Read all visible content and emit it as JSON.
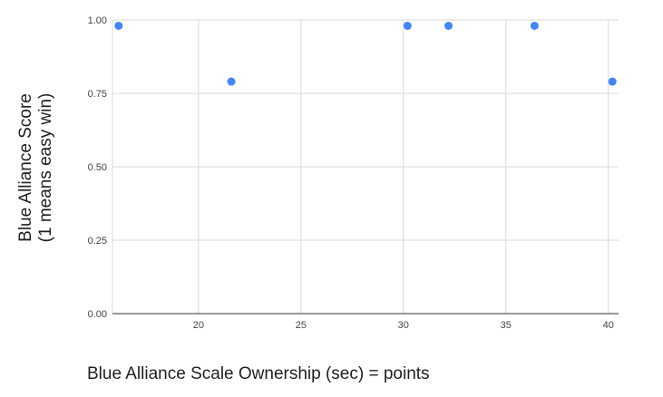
{
  "chart_data": {
    "type": "scatter",
    "title": "",
    "xlabel": "Blue Alliance Scale Ownership (sec) = points",
    "ylabel_line1": "Blue Alliance Score",
    "ylabel_line2": "(1 means easy win)",
    "xlim": [
      15.8,
      40.5
    ],
    "ylim": [
      0,
      1.0
    ],
    "x_ticks": [
      20,
      25,
      30,
      35,
      40
    ],
    "y_ticks": [
      0.0,
      0.25,
      0.5,
      0.75,
      1.0
    ],
    "x_tick_labels": [
      "20",
      "25",
      "30",
      "35",
      "40"
    ],
    "y_tick_labels": [
      "0.00",
      "0.25",
      "0.50",
      "0.75",
      "1.00"
    ],
    "grid": true,
    "legend": "none",
    "series": [
      {
        "name": "Blue Alliance Score",
        "color": "#4285f4",
        "points": [
          {
            "x": 16.1,
            "y": 0.98
          },
          {
            "x": 21.6,
            "y": 0.79
          },
          {
            "x": 30.2,
            "y": 0.98
          },
          {
            "x": 32.2,
            "y": 0.98
          },
          {
            "x": 36.4,
            "y": 0.98
          },
          {
            "x": 40.2,
            "y": 0.79
          }
        ]
      }
    ]
  }
}
